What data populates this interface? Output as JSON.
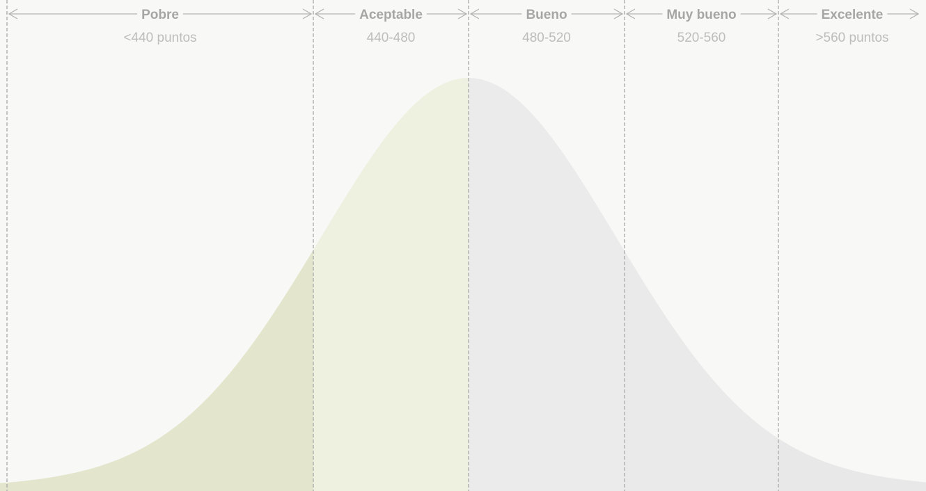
{
  "bands": [
    {
      "label": "Pobre",
      "range": "<440 puntos"
    },
    {
      "label": "Aceptable",
      "range": "440-480"
    },
    {
      "label": "Bueno",
      "range": "480-520"
    },
    {
      "label": "Muy bueno",
      "range": "520-560"
    },
    {
      "label": "Excelente",
      "range": ">560 puntos"
    }
  ]
}
